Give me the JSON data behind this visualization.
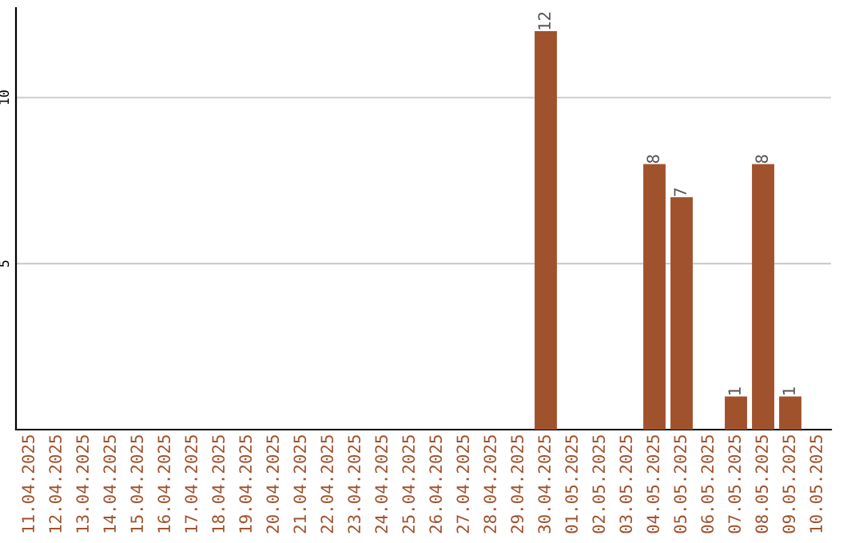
{
  "chart_data": {
    "type": "bar",
    "categories": [
      "11.04.2025",
      "12.04.2025",
      "13.04.2025",
      "14.04.2025",
      "15.04.2025",
      "16.04.2025",
      "17.04.2025",
      "18.04.2025",
      "19.04.2025",
      "20.04.2025",
      "21.04.2025",
      "22.04.2025",
      "23.04.2025",
      "24.04.2025",
      "25.04.2025",
      "26.04.2025",
      "27.04.2025",
      "28.04.2025",
      "29.04.2025",
      "30.04.2025",
      "01.05.2025",
      "02.05.2025",
      "03.05.2025",
      "04.05.2025",
      "05.05.2025",
      "06.05.2025",
      "07.05.2025",
      "08.05.2025",
      "09.05.2025",
      "10.05.2025"
    ],
    "values": [
      0,
      0,
      0,
      0,
      0,
      0,
      0,
      0,
      0,
      0,
      0,
      0,
      0,
      0,
      0,
      0,
      0,
      0,
      0,
      12,
      0,
      0,
      0,
      8,
      7,
      0,
      1,
      8,
      1,
      0
    ],
    "value_labels": [
      null,
      null,
      null,
      null,
      null,
      null,
      null,
      null,
      null,
      null,
      null,
      null,
      null,
      null,
      null,
      null,
      null,
      null,
      null,
      "12",
      null,
      null,
      null,
      "8",
      "7",
      null,
      "1",
      "8",
      "1",
      null
    ],
    "color": "#a0522d",
    "ylim": [
      0,
      12.7
    ],
    "yticks": [
      5,
      10
    ],
    "grid": "y"
  }
}
